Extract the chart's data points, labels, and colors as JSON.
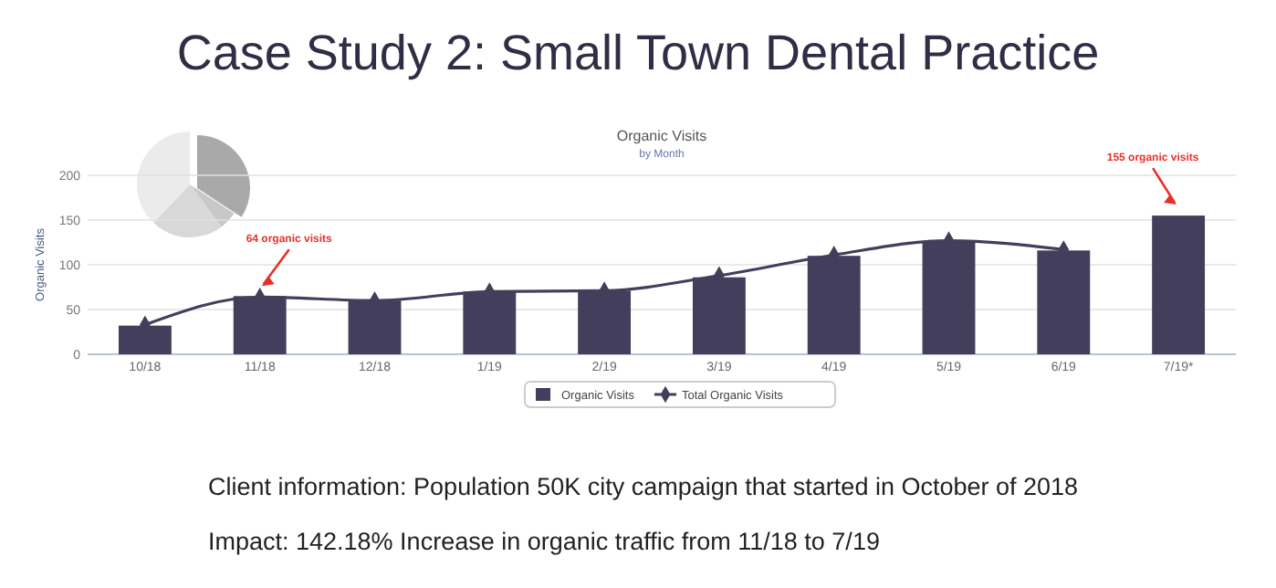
{
  "chart_data": {
    "type": "bar",
    "title": "Case Study 2: Small Town Dental Practice",
    "subtitle": "Organic Visits",
    "ylabel": "Organic Visits",
    "categories": [
      "10/18",
      "11/18",
      "12/18",
      "1/19",
      "2/19",
      "3/19",
      "4/19",
      "5/19",
      "6/19",
      "7/19*"
    ],
    "series": [
      {
        "name": "Organic Visits",
        "color": "#433e5c",
        "values": [
          32,
          65,
          60,
          70,
          71,
          86,
          110,
          126,
          116,
          155
        ]
      },
      {
        "name": "Total Organic Visits",
        "type": "line",
        "color": "#433e5c",
        "marker": "diamond",
        "values": [
          33,
          64,
          60,
          70,
          71,
          88,
          111,
          127,
          117,
          null
        ]
      }
    ],
    "ylim": [
      0,
      200
    ],
    "yticks": [
      0,
      50,
      100,
      150,
      200
    ],
    "grid": "y",
    "legend": "bottom",
    "annotations": [
      "by Month",
      {
        "text": "64 organic visits",
        "x": "11/18",
        "y": 64
      },
      {
        "text": "155 organic visits",
        "x": "7/19*",
        "y": 155
      },
      "Client information: Population 50K city campaign that started in October of 2018",
      "Impact: 142.18% Increase in organic traffic from 11/18 to 7/19"
    ]
  }
}
